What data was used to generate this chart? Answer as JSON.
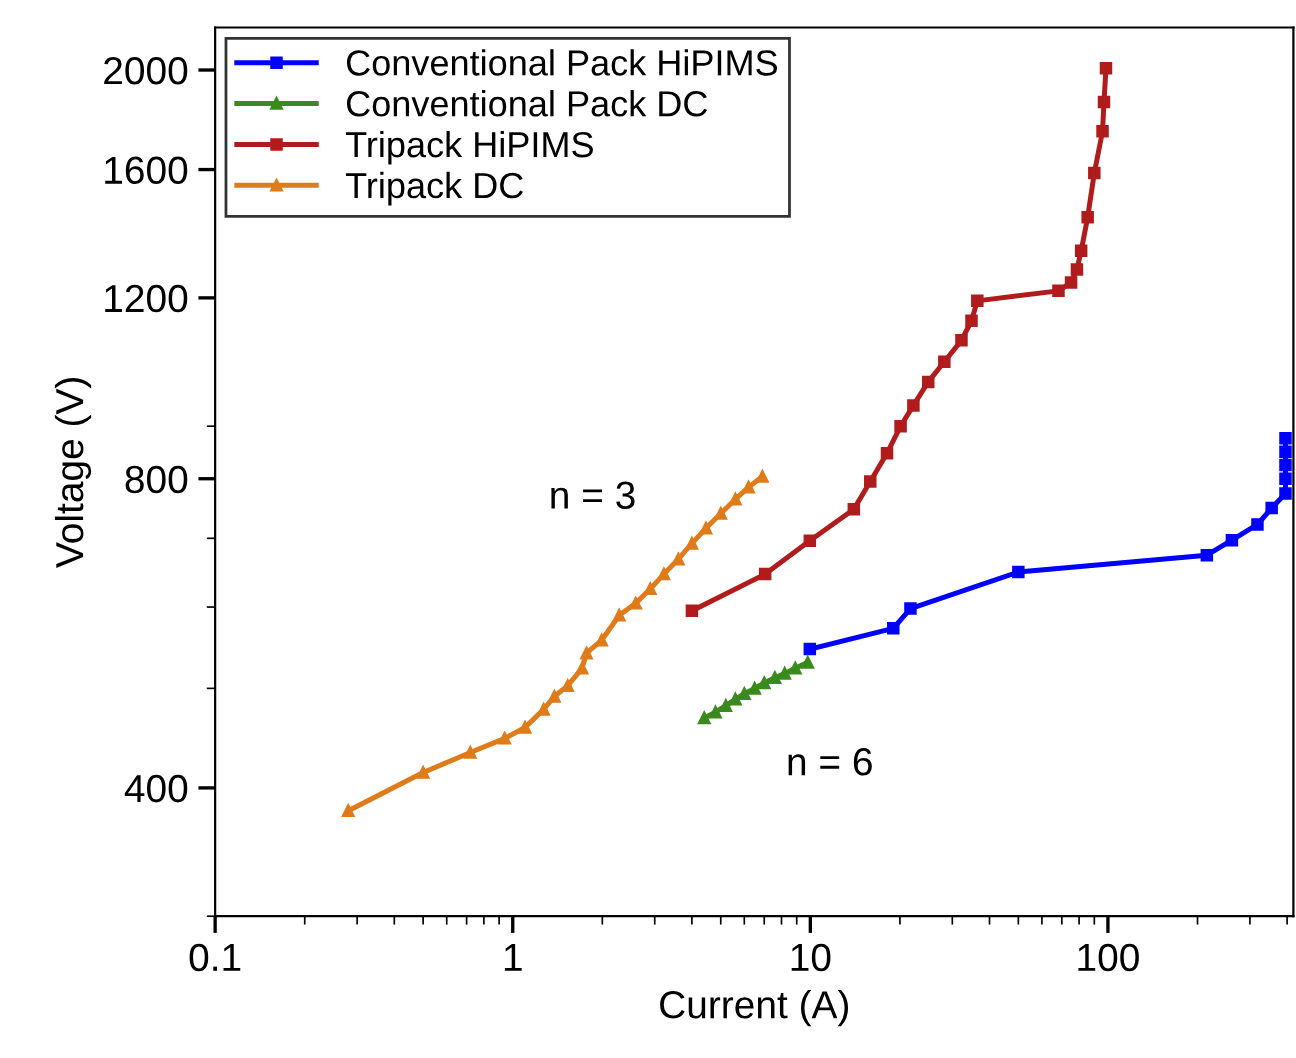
{
  "chart_data": {
    "type": "line",
    "xlabel": "Current (A)",
    "ylabel": "Voltage (V)",
    "log": "xy",
    "xlim": [
      0.1,
      420
    ],
    "xticks": [
      0.1,
      1,
      10,
      100
    ],
    "ylim": [
      300,
      2200
    ],
    "yticks": [
      400,
      800,
      1200,
      1600,
      2000
    ],
    "grid": false,
    "legend": "top left",
    "series": [
      {
        "name": "Conventional Pack HiPIMS",
        "color": "#0000ff",
        "marker": "square",
        "x": [
          9.96,
          19,
          21.7,
          50,
          215,
          261,
          318,
          355,
          395,
          395,
          395,
          395,
          395
        ],
        "values": [
          546,
          572,
          598,
          649,
          674,
          697,
          722,
          749,
          774,
          800,
          825,
          850,
          876
        ]
      },
      {
        "name": "Conventional Pack DC",
        "color": "#3a8a1e",
        "marker": "triangle",
        "x": [
          4.4,
          4.8,
          5.2,
          5.6,
          6.0,
          6.5,
          7.0,
          7.6,
          8.2,
          8.9,
          9.8
        ],
        "values": [
          468,
          474,
          481,
          488,
          494,
          500,
          506,
          512,
          517,
          523,
          530
        ]
      },
      {
        "name": "Tripack HiPIMS",
        "color": "#b01c1c",
        "marker": "square",
        "x": [
          4.0,
          7.05,
          9.96,
          14.0,
          15.9,
          18.1,
          20.1,
          22.2,
          24.9,
          28.2,
          32.2,
          34.8,
          36.4,
          68.2,
          75.2,
          78.7,
          81.3,
          85.5,
          90,
          95.9,
          97,
          98.5
        ],
        "values": [
          595,
          646,
          696,
          747,
          795,
          847,
          900,
          943,
          994,
          1040,
          1091,
          1140,
          1192,
          1219,
          1242,
          1279,
          1334,
          1438,
          1588,
          1743,
          1862,
          2008
        ]
      },
      {
        "name": "Tripack DC",
        "color": "#e07b1a",
        "marker": "triangle",
        "x": [
          0.28,
          0.5,
          0.72,
          0.94,
          1.1,
          1.27,
          1.38,
          1.53,
          1.71,
          1.77,
          1.99,
          2.28,
          2.59,
          2.9,
          3.22,
          3.6,
          4.0,
          4.46,
          5.0,
          5.6,
          6.2,
          6.9
        ],
        "values": [
          380,
          414,
          433,
          447,
          458,
          477,
          491,
          503,
          523,
          541,
          557,
          589,
          605,
          625,
          646,
          668,
          692,
          716,
          740,
          764,
          785,
          804
        ]
      }
    ],
    "annotations": [
      "n = 3",
      "n = 6"
    ]
  }
}
